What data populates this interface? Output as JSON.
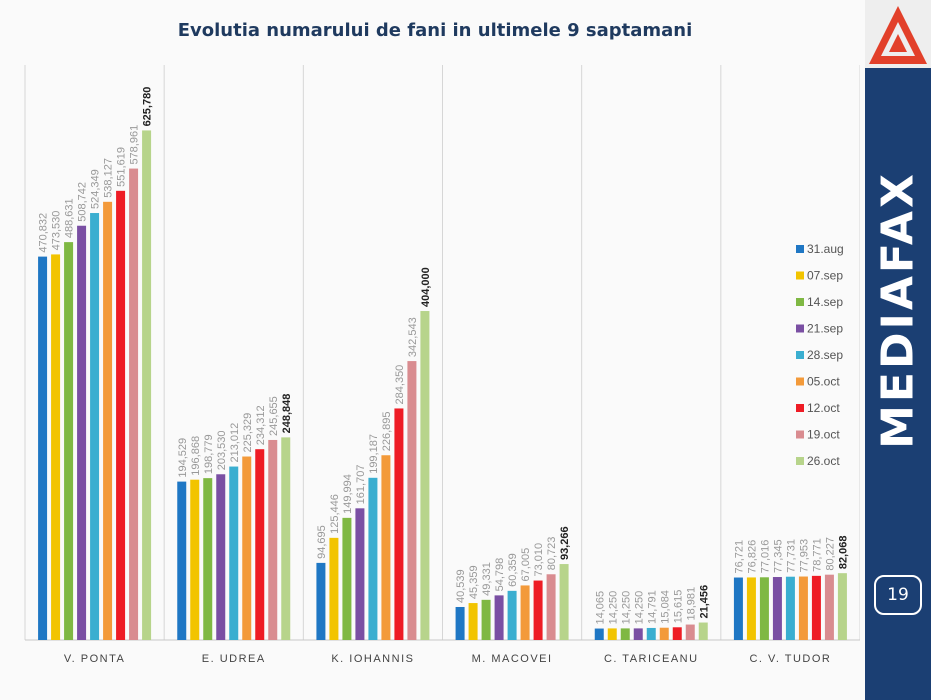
{
  "slide": {
    "brand": "MEDIAFAX",
    "page_number": "19",
    "colors": {
      "sidebar": "#1b3f73",
      "logo_red": "#e2402a"
    }
  },
  "chart_data": {
    "type": "bar",
    "title": "Evolutia numarului de fani in ultimele 9 saptamani",
    "categories": [
      "V. PONTA",
      "E. UDREA",
      "K. IOHANNIS",
      "M. MACOVEI",
      "C. TARICEANU",
      "C. V. TUDOR"
    ],
    "xlabel": "",
    "ylabel": "",
    "ylim": [
      0,
      700000
    ],
    "grid": false,
    "legend_position": "right",
    "series": [
      {
        "name": "31.aug",
        "color": "#1f77c4",
        "values": [
          470832,
          194529,
          94695,
          40539,
          14065,
          76721
        ],
        "labels": [
          "470,832",
          "194,529",
          "94,695",
          "40,539",
          "14,065",
          "76,721"
        ]
      },
      {
        "name": "07.sep",
        "color": "#f2c400",
        "values": [
          473530,
          196868,
          125446,
          45359,
          14250,
          76826
        ],
        "labels": [
          "473,530",
          "196,868",
          "125,446",
          "45,359",
          "14,250",
          "76,826"
        ]
      },
      {
        "name": "14.sep",
        "color": "#7fb843",
        "values": [
          488631,
          198779,
          149994,
          49331,
          14250,
          77016
        ],
        "labels": [
          "488,631",
          "198,779",
          "149,994",
          "49,331",
          "14,250",
          "77,016"
        ]
      },
      {
        "name": "21.sep",
        "color": "#7a4fa3",
        "values": [
          508742,
          203530,
          161707,
          54798,
          14250,
          77345
        ],
        "labels": [
          "508,742",
          "203,530",
          "161,707",
          "54,798",
          "14,250",
          "77,345"
        ]
      },
      {
        "name": "28.sep",
        "color": "#3aaed0",
        "values": [
          524349,
          213012,
          199187,
          60359,
          14791,
          77731
        ],
        "labels": [
          "524,349",
          "213,012",
          "199,187",
          "60,359",
          "14,791",
          "77,731"
        ]
      },
      {
        "name": "05.oct",
        "color": "#f39a3a",
        "values": [
          538127,
          225329,
          226895,
          67005,
          15084,
          77953
        ],
        "labels": [
          "538,127",
          "225,329",
          "226,895",
          "67,005",
          "15,084",
          "77,953"
        ]
      },
      {
        "name": "12.oct",
        "color": "#ee1c25",
        "values": [
          551619,
          234312,
          284350,
          73010,
          15615,
          78771
        ],
        "labels": [
          "551,619",
          "234,312",
          "284,350",
          "73,010",
          "15,615",
          "78,771"
        ]
      },
      {
        "name": "19.oct",
        "color": "#d98c90",
        "values": [
          578961,
          245655,
          342543,
          80723,
          18981,
          80227
        ],
        "labels": [
          "578,961",
          "245,655",
          "342,543",
          "80,723",
          "18,981",
          "80,227"
        ]
      },
      {
        "name": "26.oct",
        "color": "#b7d48b",
        "values": [
          625780,
          248848,
          404000,
          93266,
          21456,
          82068
        ],
        "labels": [
          "625,780",
          "248,848",
          "404,000",
          "93,266",
          "21,456",
          "82,068"
        ]
      }
    ]
  }
}
